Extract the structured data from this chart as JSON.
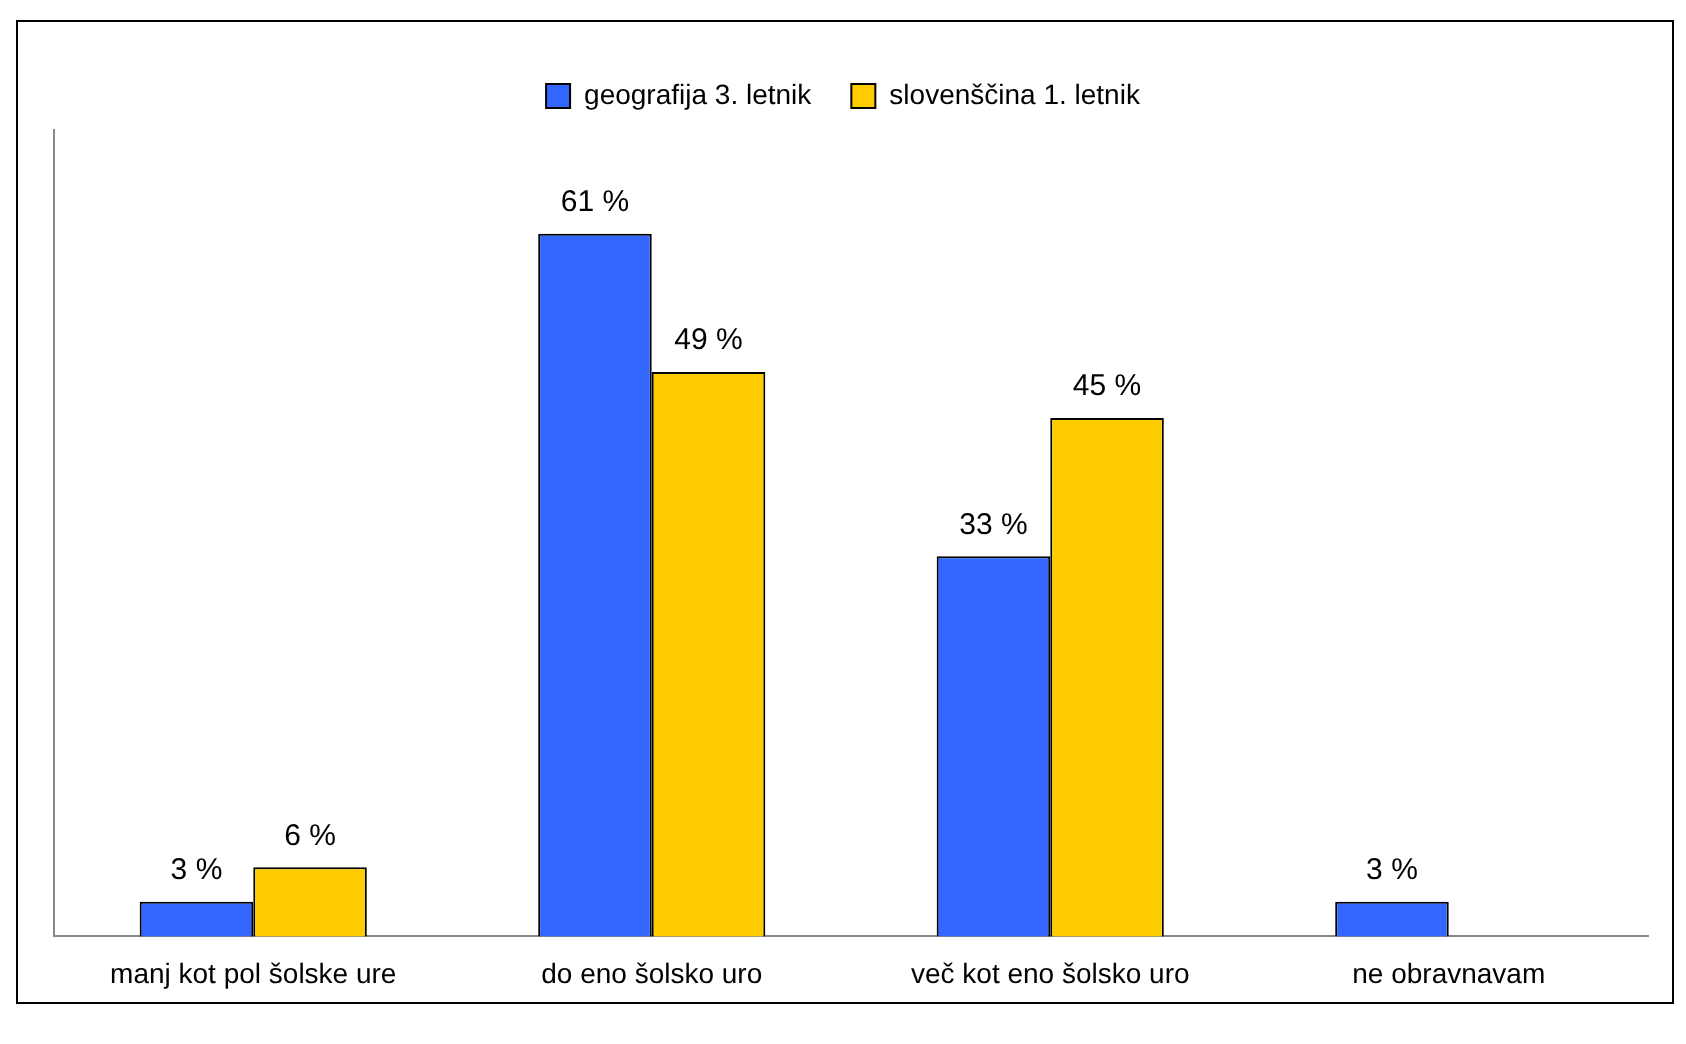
{
  "chart_data": {
    "type": "bar",
    "categories": [
      "manj kot pol šolske ure",
      "do eno šolsko uro",
      "več kot eno šolsko uro",
      "ne obravnavam"
    ],
    "series": [
      {
        "name": "geografija 3. letnik",
        "color": "#3366ff",
        "values": [
          3,
          61,
          33,
          3
        ],
        "value_labels": [
          "3 %",
          "61 %",
          "33 %",
          "3 %"
        ]
      },
      {
        "name": "slovenščina 1. letnik",
        "color": "#ffcc00",
        "values": [
          6,
          49,
          45,
          null
        ],
        "value_labels": [
          "6 %",
          "49 %",
          "45 %",
          null
        ]
      }
    ],
    "legend": "top",
    "grid": false
  }
}
